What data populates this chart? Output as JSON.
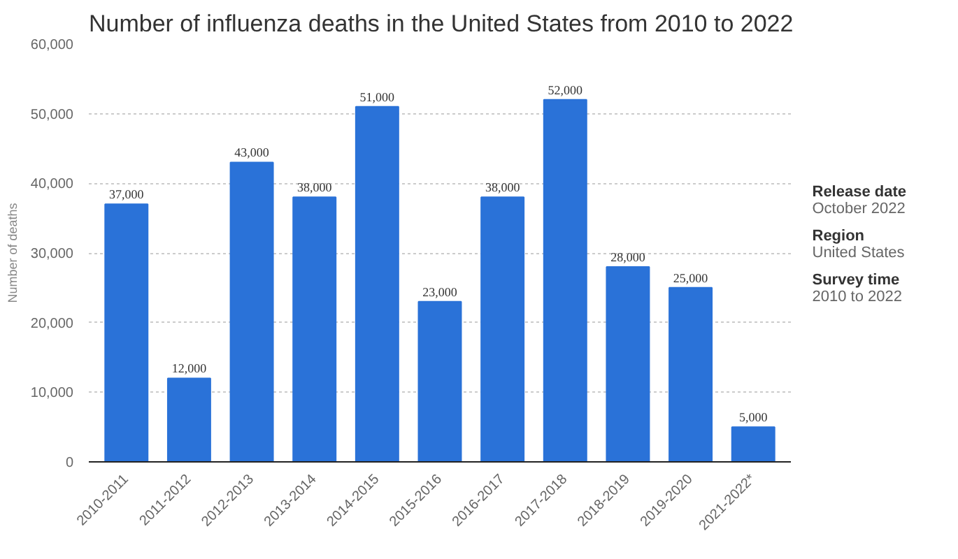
{
  "chart_data": {
    "type": "bar",
    "title": "Number of influenza deaths in the United States from 2010 to 2022",
    "ylabel": "Number of deaths",
    "categories": [
      "2010-2011",
      "2011-2012",
      "2012-2013",
      "2013-2014",
      "2014-2015",
      "2015-2016",
      "2016-2017",
      "2017-2018",
      "2018-2019",
      "2019-2020",
      "2021-2022*"
    ],
    "values": [
      37000,
      12000,
      43000,
      38000,
      51000,
      23000,
      38000,
      52000,
      28000,
      25000,
      5000
    ],
    "value_labels": [
      "37,000",
      "12,000",
      "43,000",
      "38,000",
      "51,000",
      "23,000",
      "38,000",
      "52,000",
      "28,000",
      "25,000",
      "5,000"
    ],
    "color": "#2a72d8",
    "ylim": [
      0,
      60000
    ],
    "yticks": [
      0,
      {
        "value": 10000,
        "label": "10,000"
      },
      {
        "value": 20000,
        "label": "20,000"
      },
      {
        "value": 30000,
        "label": "30,000"
      },
      {
        "value": 40000,
        "label": "40,000"
      },
      {
        "value": 50000,
        "label": "50,000"
      },
      {
        "value": 60000,
        "label": "60,000"
      }
    ],
    "grid": "y",
    "annotations": [
      "Release date",
      "October 2022",
      "Region",
      "United States",
      "Survey time",
      "2010 to 2022"
    ]
  }
}
